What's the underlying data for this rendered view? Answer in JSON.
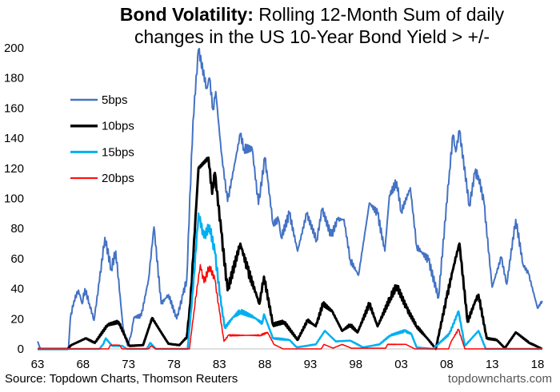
{
  "title_bold": "Bond Volatility:",
  "title_rest": " Rolling 12-Month Sum of daily",
  "title_line2": "changes in the US 10-Year Bond Yield > +/-",
  "source": "Source: Topdown Charts, Thomson Reuters",
  "brand": "topdowncharts.com",
  "chart_data": {
    "type": "line",
    "xlim": [
      1963,
      2018.6
    ],
    "ylim": [
      0,
      200
    ],
    "yticks": [
      0,
      20,
      40,
      60,
      80,
      100,
      120,
      140,
      160,
      180,
      200
    ],
    "xticks": [
      1963,
      1968,
      1973,
      1978,
      1983,
      1988,
      1993,
      1998,
      2003,
      2008,
      2013,
      2018
    ],
    "xtick_labels": [
      "63",
      "68",
      "73",
      "78",
      "83",
      "88",
      "93",
      "98",
      "03",
      "08",
      "13",
      "18"
    ],
    "legend_placement": "top-left",
    "grid": false,
    "series": [
      {
        "name": "5bps",
        "color": "#4472C4",
        "width": 2,
        "points": [
          [
            1963,
            5
          ],
          [
            1963.3,
            0
          ],
          [
            1966.4,
            0
          ],
          [
            1966.6,
            20
          ],
          [
            1967,
            32
          ],
          [
            1967.5,
            39
          ],
          [
            1967.9,
            30
          ],
          [
            1968.2,
            40
          ],
          [
            1968.7,
            30
          ],
          [
            1969.2,
            19
          ],
          [
            1969.8,
            45
          ],
          [
            1970.4,
            74
          ],
          [
            1971.1,
            53
          ],
          [
            1971.6,
            65
          ],
          [
            1972.4,
            14
          ],
          [
            1972.9,
            2
          ],
          [
            1973.3,
            10
          ],
          [
            1973.6,
            21
          ],
          [
            1974.4,
            22
          ],
          [
            1975.2,
            46
          ],
          [
            1975.8,
            81
          ],
          [
            1976.6,
            30
          ],
          [
            1977.4,
            36
          ],
          [
            1978.3,
            20
          ],
          [
            1979,
            36
          ],
          [
            1979.4,
            46
          ],
          [
            1980.1,
            152
          ],
          [
            1980.7,
            199
          ],
          [
            1981.6,
            173
          ],
          [
            1981.9,
            180
          ],
          [
            1982.3,
            159
          ],
          [
            1982.6,
            171
          ],
          [
            1983.2,
            131
          ],
          [
            1983.9,
            98
          ],
          [
            1985.3,
            143
          ],
          [
            1985.7,
            133
          ],
          [
            1986.6,
            133
          ],
          [
            1987.3,
            96
          ],
          [
            1988,
            127
          ],
          [
            1988.3,
            113
          ],
          [
            1988.9,
            83
          ],
          [
            1989.5,
            86
          ],
          [
            1989.8,
            74
          ],
          [
            1990.7,
            90
          ],
          [
            1991.6,
            65
          ],
          [
            1992.6,
            90
          ],
          [
            1993.7,
            72
          ],
          [
            1994.3,
            93
          ],
          [
            1995.3,
            75
          ],
          [
            1996,
            86
          ],
          [
            1996.7,
            86
          ],
          [
            1997.4,
            59
          ],
          [
            1998.3,
            49
          ],
          [
            1999.5,
            97
          ],
          [
            2000.4,
            90
          ],
          [
            2001.2,
            65
          ],
          [
            2001.7,
            102
          ],
          [
            2002.5,
            111
          ],
          [
            2003,
            91
          ],
          [
            2004,
            107
          ],
          [
            2004.7,
            68
          ],
          [
            2006,
            59
          ],
          [
            2007.1,
            34
          ],
          [
            2008.3,
            118
          ],
          [
            2008.7,
            142
          ],
          [
            2009,
            131
          ],
          [
            2009.4,
            145
          ],
          [
            2010.5,
            95
          ],
          [
            2011.1,
            117
          ],
          [
            2011.5,
            115
          ],
          [
            2012.1,
            97
          ],
          [
            2013,
            41
          ],
          [
            2014,
            61
          ],
          [
            2014.6,
            43
          ],
          [
            2015.6,
            86
          ],
          [
            2016.4,
            56
          ],
          [
            2017,
            50
          ],
          [
            2018,
            27
          ],
          [
            2018.5,
            32
          ]
        ]
      },
      {
        "name": "10bps",
        "color": "#000000",
        "width": 3,
        "points": [
          [
            1963,
            0
          ],
          [
            1966.3,
            0
          ],
          [
            1966.7,
            2.5
          ],
          [
            1968.3,
            7
          ],
          [
            1969.3,
            4
          ],
          [
            1970.7,
            16
          ],
          [
            1971.9,
            18
          ],
          [
            1973.1,
            2
          ],
          [
            1974.6,
            2.5
          ],
          [
            1975.6,
            20.5
          ],
          [
            1976.8,
            9
          ],
          [
            1977.4,
            3.4
          ],
          [
            1978.6,
            2.5
          ],
          [
            1979.4,
            7.7
          ],
          [
            1979.8,
            30
          ],
          [
            1980.7,
            120
          ],
          [
            1981.8,
            127
          ],
          [
            1982.2,
            103
          ],
          [
            1982.5,
            117
          ],
          [
            1983.2,
            78
          ],
          [
            1983.9,
            39
          ],
          [
            1985.3,
            70
          ],
          [
            1986.1,
            53
          ],
          [
            1987.4,
            30
          ],
          [
            1987.9,
            48
          ],
          [
            1988.9,
            16
          ],
          [
            1990.1,
            18
          ],
          [
            1991.6,
            6
          ],
          [
            1992.7,
            19
          ],
          [
            1993.6,
            15
          ],
          [
            1994.4,
            30
          ],
          [
            1995.4,
            25
          ],
          [
            1996.5,
            12
          ],
          [
            1997.4,
            16
          ],
          [
            1998.2,
            11
          ],
          [
            1999.5,
            30
          ],
          [
            2000.4,
            15
          ],
          [
            2001.8,
            34
          ],
          [
            2002.5,
            42
          ],
          [
            2003.6,
            27
          ],
          [
            2004.7,
            15
          ],
          [
            2006,
            6
          ],
          [
            2006.8,
            0
          ],
          [
            2008,
            34
          ],
          [
            2008.8,
            56
          ],
          [
            2009.4,
            70
          ],
          [
            2010.3,
            18
          ],
          [
            2011.1,
            31
          ],
          [
            2011.5,
            36
          ],
          [
            2012.4,
            7
          ],
          [
            2013.5,
            6
          ],
          [
            2014.4,
            0.5
          ],
          [
            2015.6,
            11
          ],
          [
            2017.1,
            4
          ],
          [
            2018.5,
            0
          ]
        ]
      },
      {
        "name": "15bps",
        "color": "#00B0F0",
        "width": 2.5,
        "points": [
          [
            1963,
            0
          ],
          [
            1969.8,
            0
          ],
          [
            1970.2,
            3
          ],
          [
            1970.5,
            7
          ],
          [
            1971.2,
            2
          ],
          [
            1972.3,
            2
          ],
          [
            1972.8,
            0
          ],
          [
            1975,
            0
          ],
          [
            1975.4,
            4
          ],
          [
            1976,
            0
          ],
          [
            1979.5,
            0
          ],
          [
            1980.1,
            40
          ],
          [
            1980.7,
            90
          ],
          [
            1981.3,
            74
          ],
          [
            1981.9,
            82
          ],
          [
            1982.5,
            64
          ],
          [
            1983.2,
            29
          ],
          [
            1983.6,
            14
          ],
          [
            1984.5,
            21
          ],
          [
            1985.3,
            25
          ],
          [
            1986.8,
            21
          ],
          [
            1987.7,
            17
          ],
          [
            1987.9,
            23
          ],
          [
            1988.9,
            7
          ],
          [
            1990.7,
            6
          ],
          [
            1991.5,
            1
          ],
          [
            1993.6,
            3
          ],
          [
            1994.6,
            12
          ],
          [
            1995.8,
            5
          ],
          [
            1997.4,
            5.5
          ],
          [
            1998.8,
            1
          ],
          [
            2000.6,
            3
          ],
          [
            2001.8,
            9
          ],
          [
            2003.4,
            12
          ],
          [
            2004.1,
            10
          ],
          [
            2004.7,
            1
          ],
          [
            2006.5,
            0
          ],
          [
            2008.3,
            10
          ],
          [
            2009.3,
            25
          ],
          [
            2010,
            2
          ],
          [
            2010.9,
            8
          ],
          [
            2011.5,
            12
          ],
          [
            2012.3,
            0
          ],
          [
            2018.5,
            0
          ]
        ]
      },
      {
        "name": "20bps",
        "color": "#FF0000",
        "width": 1.5,
        "points": [
          [
            1963,
            0
          ],
          [
            1970.8,
            0
          ],
          [
            1971,
            2.5
          ],
          [
            1972,
            2.5
          ],
          [
            1972.3,
            0
          ],
          [
            1975.2,
            0
          ],
          [
            1975.5,
            2
          ],
          [
            1976,
            0
          ],
          [
            1979.7,
            0
          ],
          [
            1980.2,
            25
          ],
          [
            1980.9,
            56
          ],
          [
            1981.3,
            44
          ],
          [
            1981.9,
            55
          ],
          [
            1982.5,
            46
          ],
          [
            1983,
            25
          ],
          [
            1983.5,
            5
          ],
          [
            1984,
            9
          ],
          [
            1987.5,
            9
          ],
          [
            1988.3,
            11
          ],
          [
            1989,
            3
          ],
          [
            1990,
            0
          ],
          [
            1994.2,
            0
          ],
          [
            1994.5,
            3
          ],
          [
            1995.5,
            0.5
          ],
          [
            1996.5,
            3
          ],
          [
            1997.5,
            0.5
          ],
          [
            2001.3,
            0.5
          ],
          [
            2001.5,
            3
          ],
          [
            2003.5,
            3
          ],
          [
            2004.5,
            0
          ],
          [
            2008.2,
            0
          ],
          [
            2008.5,
            5
          ],
          [
            2009.3,
            13
          ],
          [
            2010,
            0
          ],
          [
            2018.5,
            0
          ]
        ]
      }
    ]
  }
}
